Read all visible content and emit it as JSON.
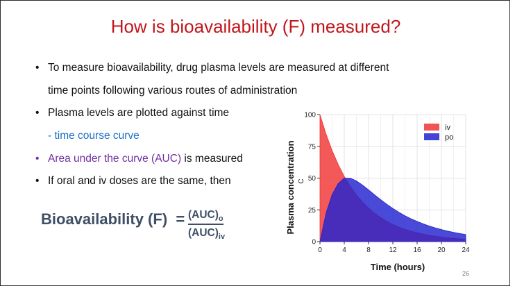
{
  "slide": {
    "title": "How is bioavailability (F) measured?",
    "bullets": [
      {
        "text": "To measure bioavailability, drug plasma levels are measured at different"
      },
      {
        "cont": "time points following various routes of administration"
      },
      {
        "text": "Plasma levels are plotted against time"
      },
      {
        "cont": "- time course curve"
      },
      {
        "colored": "Area under the curve (AUC)",
        "rest": " is measured"
      },
      {
        "text": "If oral and iv doses are the same, then"
      }
    ],
    "formula": {
      "lhs": "Bioavailability (F)",
      "eq": "=",
      "numerator": "(AUC)",
      "numerator_sub": "o",
      "denominator": "(AUC)",
      "denominator_sub": "iv"
    },
    "page_number": "26",
    "colors": {
      "title": "#c0161c",
      "link_blue": "#1a6fc4",
      "purple": "#7030a0",
      "formula": "#3f4f66"
    }
  },
  "chart_data": {
    "type": "area",
    "xlabel": "Time (hours)",
    "ylabel": "Plasma concentration",
    "ylabel2": "C",
    "xticks": [
      0,
      4,
      8,
      12,
      16,
      20,
      24
    ],
    "yticks": [
      0,
      25,
      50,
      75,
      100
    ],
    "xlim": [
      0,
      24
    ],
    "ylim": [
      0,
      100
    ],
    "grid": true,
    "legend_position": "top-right",
    "series": [
      {
        "name": "iv",
        "color": "#f03535",
        "x": [
          0,
          1,
          2,
          3,
          4,
          5,
          6,
          7,
          8,
          9,
          10,
          11,
          12,
          13,
          14,
          15,
          16,
          17,
          18,
          19,
          20,
          21,
          22,
          23,
          24
        ],
        "values": [
          100,
          84.6,
          71.7,
          60.7,
          51.3,
          43.5,
          36.8,
          31.2,
          26.4,
          22.3,
          18.9,
          16.0,
          13.5,
          11.5,
          9.7,
          8.2,
          7.0,
          5.9,
          5.0,
          4.2,
          3.6,
          3.0,
          2.6,
          2.2,
          1.8
        ]
      },
      {
        "name": "po",
        "color": "#2222d0",
        "x": [
          0,
          1,
          2,
          3,
          4,
          5,
          6,
          7,
          8,
          9,
          10,
          11,
          12,
          13,
          14,
          15,
          16,
          17,
          18,
          19,
          20,
          21,
          22,
          23,
          24
        ],
        "values": [
          0,
          22.5,
          37.1,
          45.8,
          50.0,
          49.9,
          47.8,
          44.5,
          40.7,
          36.8,
          33.0,
          29.4,
          26.1,
          23.1,
          20.4,
          18.0,
          15.9,
          14.0,
          12.3,
          10.8,
          9.5,
          8.3,
          7.3,
          6.4,
          5.6
        ]
      }
    ]
  }
}
